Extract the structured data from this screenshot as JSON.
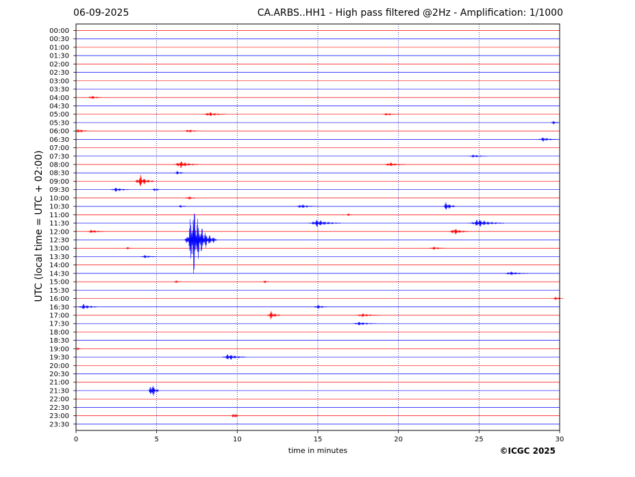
{
  "header": {
    "date": "06-09-2025",
    "title": "CA.ARBS..HH1 - High pass filtered @2Hz - Amplification: 1/1000"
  },
  "copyright": "©ICGC 2025",
  "colors": {
    "even_rows": "#ff0000",
    "odd_rows": "#0000ff",
    "grid": "#000080"
  },
  "chart_data": {
    "type": "seismogram",
    "xlabel": "time in minutes",
    "ylabel": "UTC (local time = UTC + 02:00)",
    "xlim": [
      0,
      30
    ],
    "x_ticks": [
      0,
      5,
      10,
      15,
      20,
      25,
      30
    ],
    "vertical_grid": true,
    "row_labels": [
      "00:00",
      "00:30",
      "01:00",
      "01:30",
      "02:00",
      "02:30",
      "03:00",
      "03:30",
      "04:00",
      "04:30",
      "05:00",
      "05:30",
      "06:00",
      "06:30",
      "07:00",
      "07:30",
      "08:00",
      "08:30",
      "09:00",
      "09:30",
      "10:00",
      "10:30",
      "11:00",
      "11:30",
      "12:00",
      "12:30",
      "13:00",
      "13:30",
      "14:00",
      "14:30",
      "15:00",
      "15:30",
      "16:00",
      "16:30",
      "17:00",
      "17:30",
      "18:00",
      "18:30",
      "19:00",
      "19:30",
      "20:00",
      "20:30",
      "21:00",
      "21:30",
      "22:00",
      "22:30",
      "23:00",
      "23:30"
    ],
    "events": [
      {
        "row": "04:00",
        "minute": 1.0,
        "amplitude": 0.3,
        "duration": 0.8
      },
      {
        "row": "05:00",
        "minute": 8.3,
        "amplitude": 0.35,
        "duration": 1.5
      },
      {
        "row": "05:00",
        "minute": 19.3,
        "amplitude": 0.2,
        "duration": 1.0
      },
      {
        "row": "05:30",
        "minute": 29.6,
        "amplitude": 0.3,
        "duration": 0.5
      },
      {
        "row": "06:00",
        "minute": 0.2,
        "amplitude": 0.35,
        "duration": 0.8
      },
      {
        "row": "06:00",
        "minute": 7.0,
        "amplitude": 0.3,
        "duration": 0.8
      },
      {
        "row": "06:30",
        "minute": 29.0,
        "amplitude": 0.35,
        "duration": 1.2
      },
      {
        "row": "07:30",
        "minute": 24.7,
        "amplitude": 0.25,
        "duration": 1.2
      },
      {
        "row": "08:00",
        "minute": 6.5,
        "amplitude": 0.6,
        "duration": 1.5
      },
      {
        "row": "08:00",
        "minute": 19.5,
        "amplitude": 0.35,
        "duration": 1.3
      },
      {
        "row": "08:30",
        "minute": 6.3,
        "amplitude": 0.3,
        "duration": 0.6
      },
      {
        "row": "09:00",
        "minute": 4.0,
        "amplitude": 1.0,
        "duration": 1.2
      },
      {
        "row": "09:30",
        "minute": 2.5,
        "amplitude": 0.35,
        "duration": 1.2
      },
      {
        "row": "09:30",
        "minute": 4.9,
        "amplitude": 0.3,
        "duration": 0.4
      },
      {
        "row": "10:00",
        "minute": 7.0,
        "amplitude": 0.3,
        "duration": 0.6
      },
      {
        "row": "10:30",
        "minute": 14.0,
        "amplitude": 0.35,
        "duration": 1.2
      },
      {
        "row": "10:30",
        "minute": 23.0,
        "amplitude": 0.75,
        "duration": 0.8
      },
      {
        "row": "10:30",
        "minute": 6.5,
        "amplitude": 0.2,
        "duration": 0.5
      },
      {
        "row": "11:00",
        "minute": 16.9,
        "amplitude": 0.2,
        "duration": 0.3
      },
      {
        "row": "11:30",
        "minute": 15.0,
        "amplitude": 0.6,
        "duration": 2.0
      },
      {
        "row": "11:30",
        "minute": 25.0,
        "amplitude": 0.65,
        "duration": 2.2
      },
      {
        "row": "12:00",
        "minute": 1.0,
        "amplitude": 0.3,
        "duration": 1.0
      },
      {
        "row": "12:00",
        "minute": 23.5,
        "amplitude": 0.55,
        "duration": 1.2
      },
      {
        "row": "12:30",
        "minute": 7.3,
        "amplitude": 5.5,
        "duration": 2.0
      },
      {
        "row": "13:00",
        "minute": 3.2,
        "amplitude": 0.2,
        "duration": 0.3
      },
      {
        "row": "13:00",
        "minute": 22.2,
        "amplitude": 0.25,
        "duration": 1.0
      },
      {
        "row": "13:30",
        "minute": 4.3,
        "amplitude": 0.25,
        "duration": 1.0
      },
      {
        "row": "14:30",
        "minute": 27.0,
        "amplitude": 0.3,
        "duration": 1.5
      },
      {
        "row": "15:00",
        "minute": 6.2,
        "amplitude": 0.2,
        "duration": 0.5
      },
      {
        "row": "15:00",
        "minute": 11.7,
        "amplitude": 0.2,
        "duration": 0.4
      },
      {
        "row": "16:00",
        "minute": 29.8,
        "amplitude": 0.3,
        "duration": 0.6
      },
      {
        "row": "16:30",
        "minute": 0.5,
        "amplitude": 0.45,
        "duration": 1.2
      },
      {
        "row": "16:30",
        "minute": 15.0,
        "amplitude": 0.35,
        "duration": 0.8
      },
      {
        "row": "17:00",
        "minute": 12.1,
        "amplitude": 0.7,
        "duration": 0.8
      },
      {
        "row": "17:00",
        "minute": 17.8,
        "amplitude": 0.3,
        "duration": 1.5
      },
      {
        "row": "17:30",
        "minute": 17.6,
        "amplitude": 0.3,
        "duration": 1.5
      },
      {
        "row": "19:00",
        "minute": 0.1,
        "amplitude": 0.2,
        "duration": 0.3
      },
      {
        "row": "19:30",
        "minute": 9.5,
        "amplitude": 0.55,
        "duration": 1.5
      },
      {
        "row": "21:30",
        "minute": 4.7,
        "amplitude": 1.4,
        "duration": 0.6
      },
      {
        "row": "23:00",
        "minute": 9.8,
        "amplitude": 0.6,
        "duration": 0.4
      }
    ]
  }
}
